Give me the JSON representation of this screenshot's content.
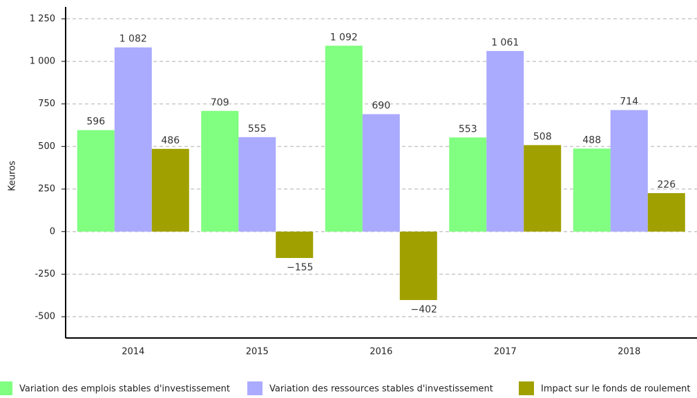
{
  "chart_data": {
    "type": "bar",
    "y_label": "Keuros",
    "categories": [
      "2014",
      "2015",
      "2016",
      "2017",
      "2018"
    ],
    "series": [
      {
        "name": "Variation des emplois stables d'investissement",
        "color": "#80ff80",
        "values": [
          596,
          709,
          1092,
          553,
          488
        ],
        "value_labels": [
          "596",
          "709",
          "1 092",
          "553",
          "488"
        ]
      },
      {
        "name": "Variation des ressources stables d'investissement",
        "color": "#aaaaff",
        "values": [
          1082,
          555,
          690,
          1061,
          714
        ],
        "value_labels": [
          "1 082",
          "555",
          "690",
          "1 061",
          "714"
        ]
      },
      {
        "name": "Impact sur le fonds de roulement",
        "color": "#a0a000",
        "values": [
          486,
          -155,
          -402,
          508,
          226
        ],
        "value_labels": [
          "486",
          "−155",
          "−402",
          "508",
          "226"
        ]
      }
    ],
    "ylim": [
      -625,
      1320
    ],
    "yticks": [
      {
        "value": -500,
        "label": "-500"
      },
      {
        "value": -250,
        "label": "-250"
      },
      0,
      250,
      500,
      750,
      {
        "value": 1000,
        "label": "1 000"
      },
      {
        "value": 1250,
        "label": "1 250"
      }
    ],
    "grid": true,
    "legend": "bottom"
  }
}
